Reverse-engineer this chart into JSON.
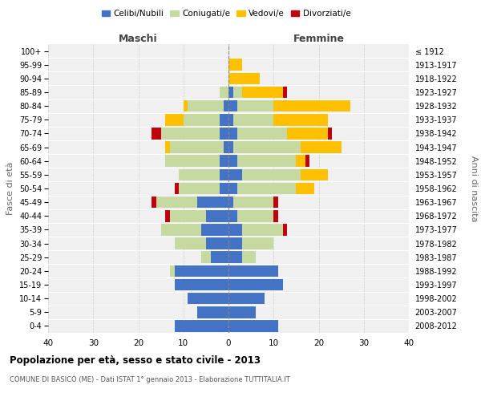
{
  "age_groups": [
    "0-4",
    "5-9",
    "10-14",
    "15-19",
    "20-24",
    "25-29",
    "30-34",
    "35-39",
    "40-44",
    "45-49",
    "50-54",
    "55-59",
    "60-64",
    "65-69",
    "70-74",
    "75-79",
    "80-84",
    "85-89",
    "90-94",
    "95-99",
    "100+"
  ],
  "birth_years": [
    "2008-2012",
    "2003-2007",
    "1998-2002",
    "1993-1997",
    "1988-1992",
    "1983-1987",
    "1978-1982",
    "1973-1977",
    "1968-1972",
    "1963-1967",
    "1958-1962",
    "1953-1957",
    "1948-1952",
    "1943-1947",
    "1938-1942",
    "1933-1937",
    "1928-1932",
    "1923-1927",
    "1918-1922",
    "1913-1917",
    "≤ 1912"
  ],
  "maschi": {
    "celibi": [
      12,
      7,
      9,
      12,
      12,
      4,
      5,
      6,
      5,
      7,
      2,
      2,
      2,
      1,
      2,
      2,
      1,
      0,
      0,
      0,
      0
    ],
    "coniugati": [
      0,
      0,
      0,
      0,
      1,
      2,
      7,
      9,
      8,
      9,
      9,
      9,
      12,
      12,
      13,
      8,
      8,
      2,
      0,
      0,
      0
    ],
    "vedovi": [
      0,
      0,
      0,
      0,
      0,
      0,
      0,
      0,
      0,
      0,
      0,
      0,
      0,
      1,
      0,
      4,
      1,
      0,
      0,
      0,
      0
    ],
    "divorziati": [
      0,
      0,
      0,
      0,
      0,
      0,
      0,
      0,
      1,
      1,
      1,
      0,
      0,
      0,
      2,
      0,
      0,
      0,
      0,
      0,
      0
    ]
  },
  "femmine": {
    "nubili": [
      11,
      6,
      8,
      12,
      11,
      3,
      3,
      3,
      2,
      1,
      2,
      3,
      2,
      1,
      2,
      1,
      2,
      1,
      0,
      0,
      0
    ],
    "coniugate": [
      0,
      0,
      0,
      0,
      0,
      3,
      7,
      9,
      8,
      9,
      13,
      13,
      13,
      15,
      11,
      9,
      8,
      2,
      0,
      0,
      0
    ],
    "vedove": [
      0,
      0,
      0,
      0,
      0,
      0,
      0,
      0,
      0,
      0,
      4,
      6,
      2,
      9,
      9,
      12,
      17,
      9,
      7,
      3,
      0
    ],
    "divorziate": [
      0,
      0,
      0,
      0,
      0,
      0,
      0,
      1,
      1,
      1,
      0,
      0,
      1,
      0,
      1,
      0,
      0,
      1,
      0,
      0,
      0
    ]
  },
  "color_celibi": "#4472c4",
  "color_coniugati": "#c5d9a0",
  "color_vedovi": "#ffc000",
  "color_divorziati": "#c0000a",
  "xlim": 40,
  "title": "Popolazione per età, sesso e stato civile - 2013",
  "subtitle": "COMUNE DI BASICÒ (ME) - Dati ISTAT 1° gennaio 2013 - Elaborazione TUTTITALIA.IT",
  "ylabel_left": "Fasce di età",
  "ylabel_right": "Anni di nascita",
  "xlabel_maschi": "Maschi",
  "xlabel_femmine": "Femmine"
}
